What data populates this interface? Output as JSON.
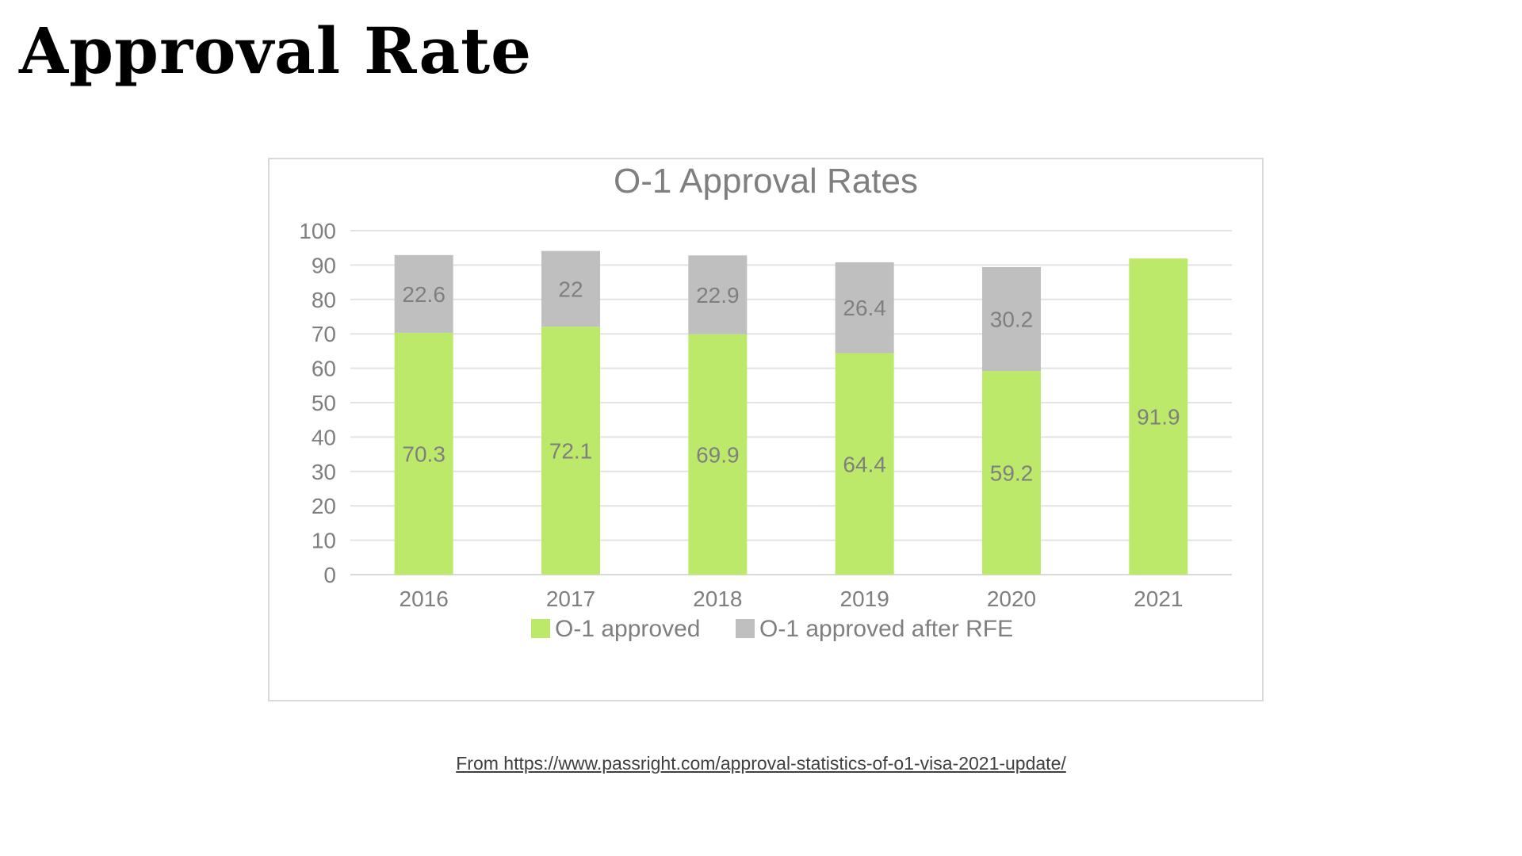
{
  "page": {
    "title": "Approval Rate",
    "source": "From https://www.passright.com/approval-statistics-of-o1-visa-2021-update/"
  },
  "chart_data": {
    "type": "bar",
    "stacked": true,
    "title": "O-1 Approval Rates",
    "xlabel": "",
    "ylabel": "",
    "categories": [
      "2016",
      "2017",
      "2018",
      "2019",
      "2020",
      "2021"
    ],
    "series": [
      {
        "name": "O-1 approved",
        "color": "#bde96a",
        "values": [
          70.3,
          72.1,
          69.9,
          64.4,
          59.2,
          91.9
        ],
        "labels": [
          "70.3",
          "72.1",
          "69.9",
          "64.4",
          "59.2",
          "91.9"
        ]
      },
      {
        "name": "O-1 approved after RFE",
        "color": "#bfbfbf",
        "values": [
          22.6,
          22,
          22.9,
          26.4,
          30.2,
          0
        ],
        "labels": [
          "22.6",
          "22",
          "22.9",
          "26.4",
          "30.2",
          ""
        ]
      }
    ],
    "ylim": [
      0,
      100
    ],
    "yticks": [
      "0",
      "10",
      "20",
      "30",
      "40",
      "50",
      "60",
      "70",
      "80",
      "90",
      "100"
    ],
    "grid": true,
    "legend": "bottom"
  }
}
